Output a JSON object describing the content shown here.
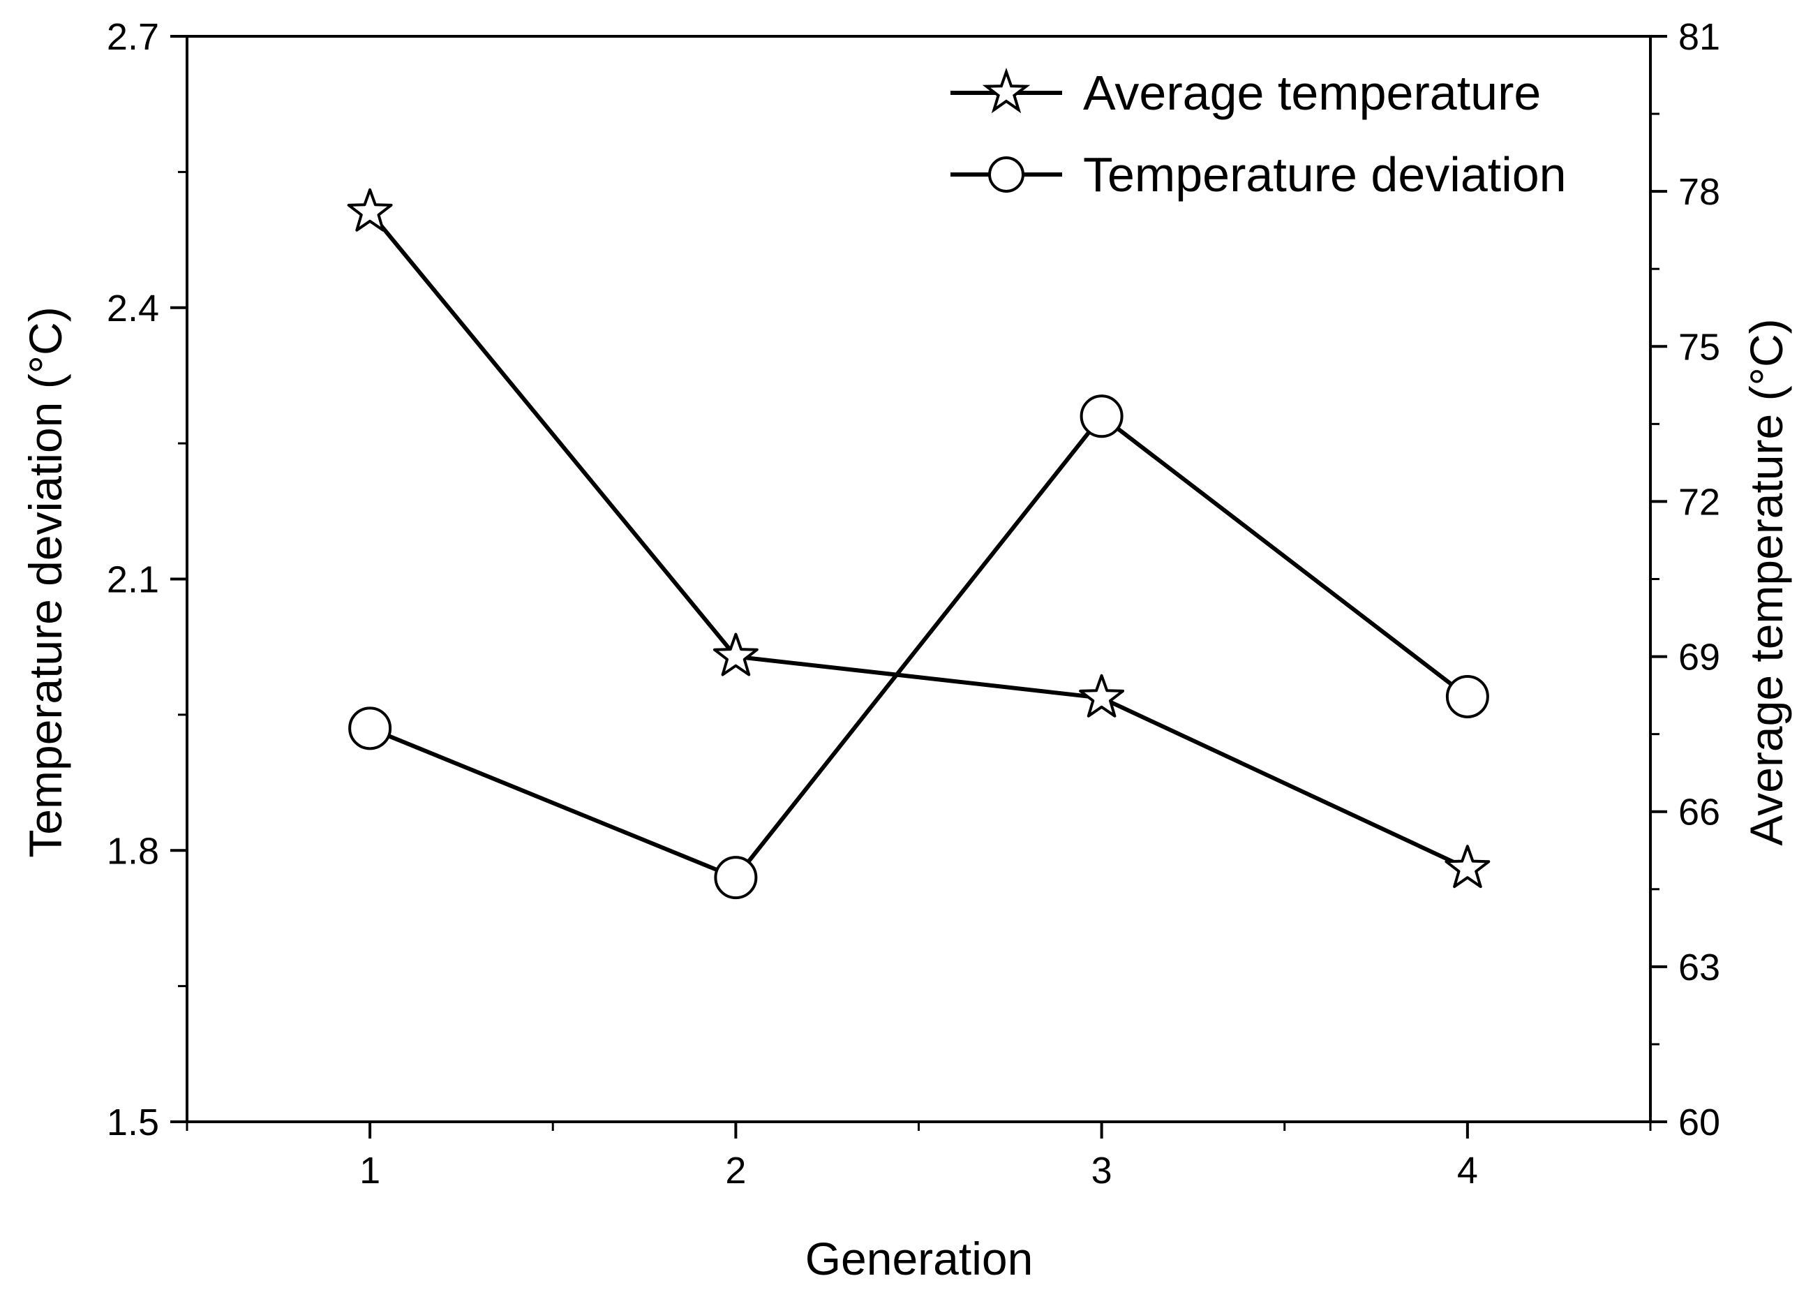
{
  "chart_data": {
    "type": "line",
    "title": "",
    "xlabel": "Generation",
    "ylabel_left": "Temperature deviation (°C)",
    "ylabel_right": "Average temperature (°C)",
    "x": [
      1,
      2,
      3,
      4
    ],
    "x_tick_labels": [
      "1",
      "2",
      "3",
      "4"
    ],
    "xlim": [
      0.5,
      4.5
    ],
    "ylim_left": [
      1.5,
      2.7
    ],
    "ylim_right": [
      60,
      81
    ],
    "y_left_tick_labels": [
      "1.5",
      "1.8",
      "2.1",
      "2.4",
      "2.7"
    ],
    "y_right_tick_labels": [
      "60",
      "63",
      "66",
      "69",
      "72",
      "75",
      "78",
      "81"
    ],
    "series": [
      {
        "name": "Average temperature",
        "axis": "right",
        "marker": "star",
        "values": [
          77.6,
          69.0,
          68.2,
          64.9
        ]
      },
      {
        "name": "Temperature deviation",
        "axis": "left",
        "marker": "circle",
        "values": [
          1.935,
          1.77,
          2.28,
          1.97
        ]
      }
    ],
    "legend_position": "top-right",
    "grid": false,
    "colors": {
      "line": "#000000",
      "marker_fill": "#ffffff",
      "background": "#ffffff"
    }
  }
}
